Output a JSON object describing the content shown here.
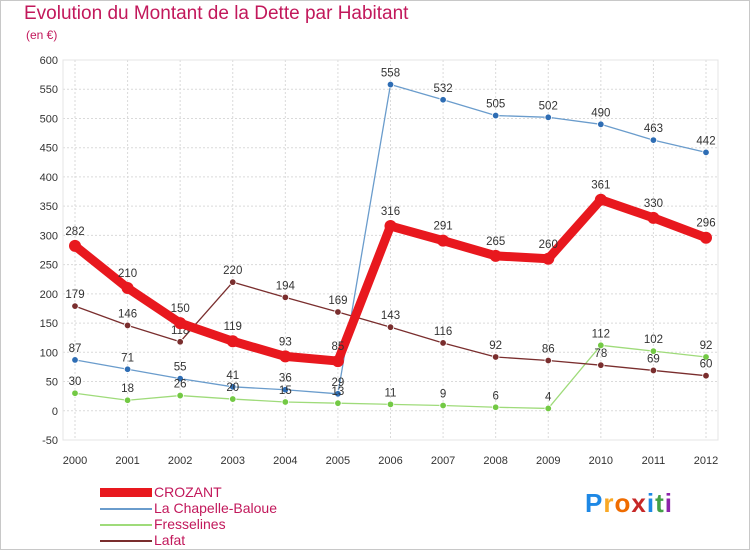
{
  "header": {
    "title": "Evolution du Montant de la Dette par Habitant",
    "unit": "(en €)"
  },
  "logo": {
    "letters": [
      "P",
      "r",
      "o",
      "x",
      "i",
      "t",
      "i"
    ],
    "colors": [
      "#1e88e5",
      "#f9a825",
      "#ef6c00",
      "#c62828",
      "#1e88e5",
      "#43a047",
      "#8e24aa"
    ]
  },
  "chart_data": {
    "type": "line",
    "title": "Evolution du Montant de la Dette par Habitant",
    "ylabel": "(en €)",
    "xlabel": "",
    "ylim": [
      -50,
      600
    ],
    "yticks": [
      -50,
      0,
      50,
      100,
      150,
      200,
      250,
      300,
      350,
      400,
      450,
      500,
      550,
      600
    ],
    "categories": [
      "2000",
      "2001",
      "2002",
      "2003",
      "2004",
      "2005",
      "2006",
      "2007",
      "2008",
      "2009",
      "2010",
      "2011",
      "2012"
    ],
    "legend_position": "bottom-left",
    "series": [
      {
        "name": "La Chapelle-Baloue",
        "color": "#6a9ccc",
        "marker": "#2e6db4",
        "values": [
          87,
          71,
          55,
          41,
          36,
          29,
          558,
          532,
          505,
          502,
          490,
          463,
          442
        ],
        "labels": [
          "87",
          "71",
          "55",
          "41",
          "36",
          "29",
          "558",
          "532",
          "505",
          "502",
          "490",
          "463",
          "442"
        ]
      },
      {
        "name": "Fresselines",
        "color": "#9fdb7a",
        "marker": "#73c944",
        "values": [
          30,
          18,
          26,
          20,
          15,
          13,
          11,
          9,
          6,
          4,
          112,
          102,
          92
        ],
        "labels": [
          "30",
          "18",
          "26",
          "20",
          "15",
          "13",
          "11",
          "9",
          "6",
          "4",
          "112",
          "102",
          "92"
        ]
      },
      {
        "name": "Lafat",
        "color": "#7a2e2e",
        "marker": "#7a2e2e",
        "values": [
          179,
          146,
          118,
          220,
          194,
          169,
          143,
          116,
          92,
          86,
          78,
          69,
          60
        ],
        "labels": [
          "179",
          "146",
          "118",
          "220",
          "194",
          "169",
          "143",
          "116",
          "92",
          "86",
          "78",
          "69",
          "60"
        ]
      },
      {
        "name": "CROZANT",
        "color": "#e8181e",
        "marker": "#e8181e",
        "values": [
          282,
          210,
          150,
          119,
          93,
          85,
          316,
          291,
          265,
          260,
          361,
          330,
          296
        ],
        "labels": [
          "282",
          "210",
          "150",
          "119",
          "93",
          "85",
          "316",
          "291",
          "265",
          "260",
          "361",
          "330",
          "296"
        ]
      }
    ],
    "legend": [
      "CROZANT",
      "La Chapelle-Baloue",
      "Fresselines",
      "Lafat"
    ]
  }
}
